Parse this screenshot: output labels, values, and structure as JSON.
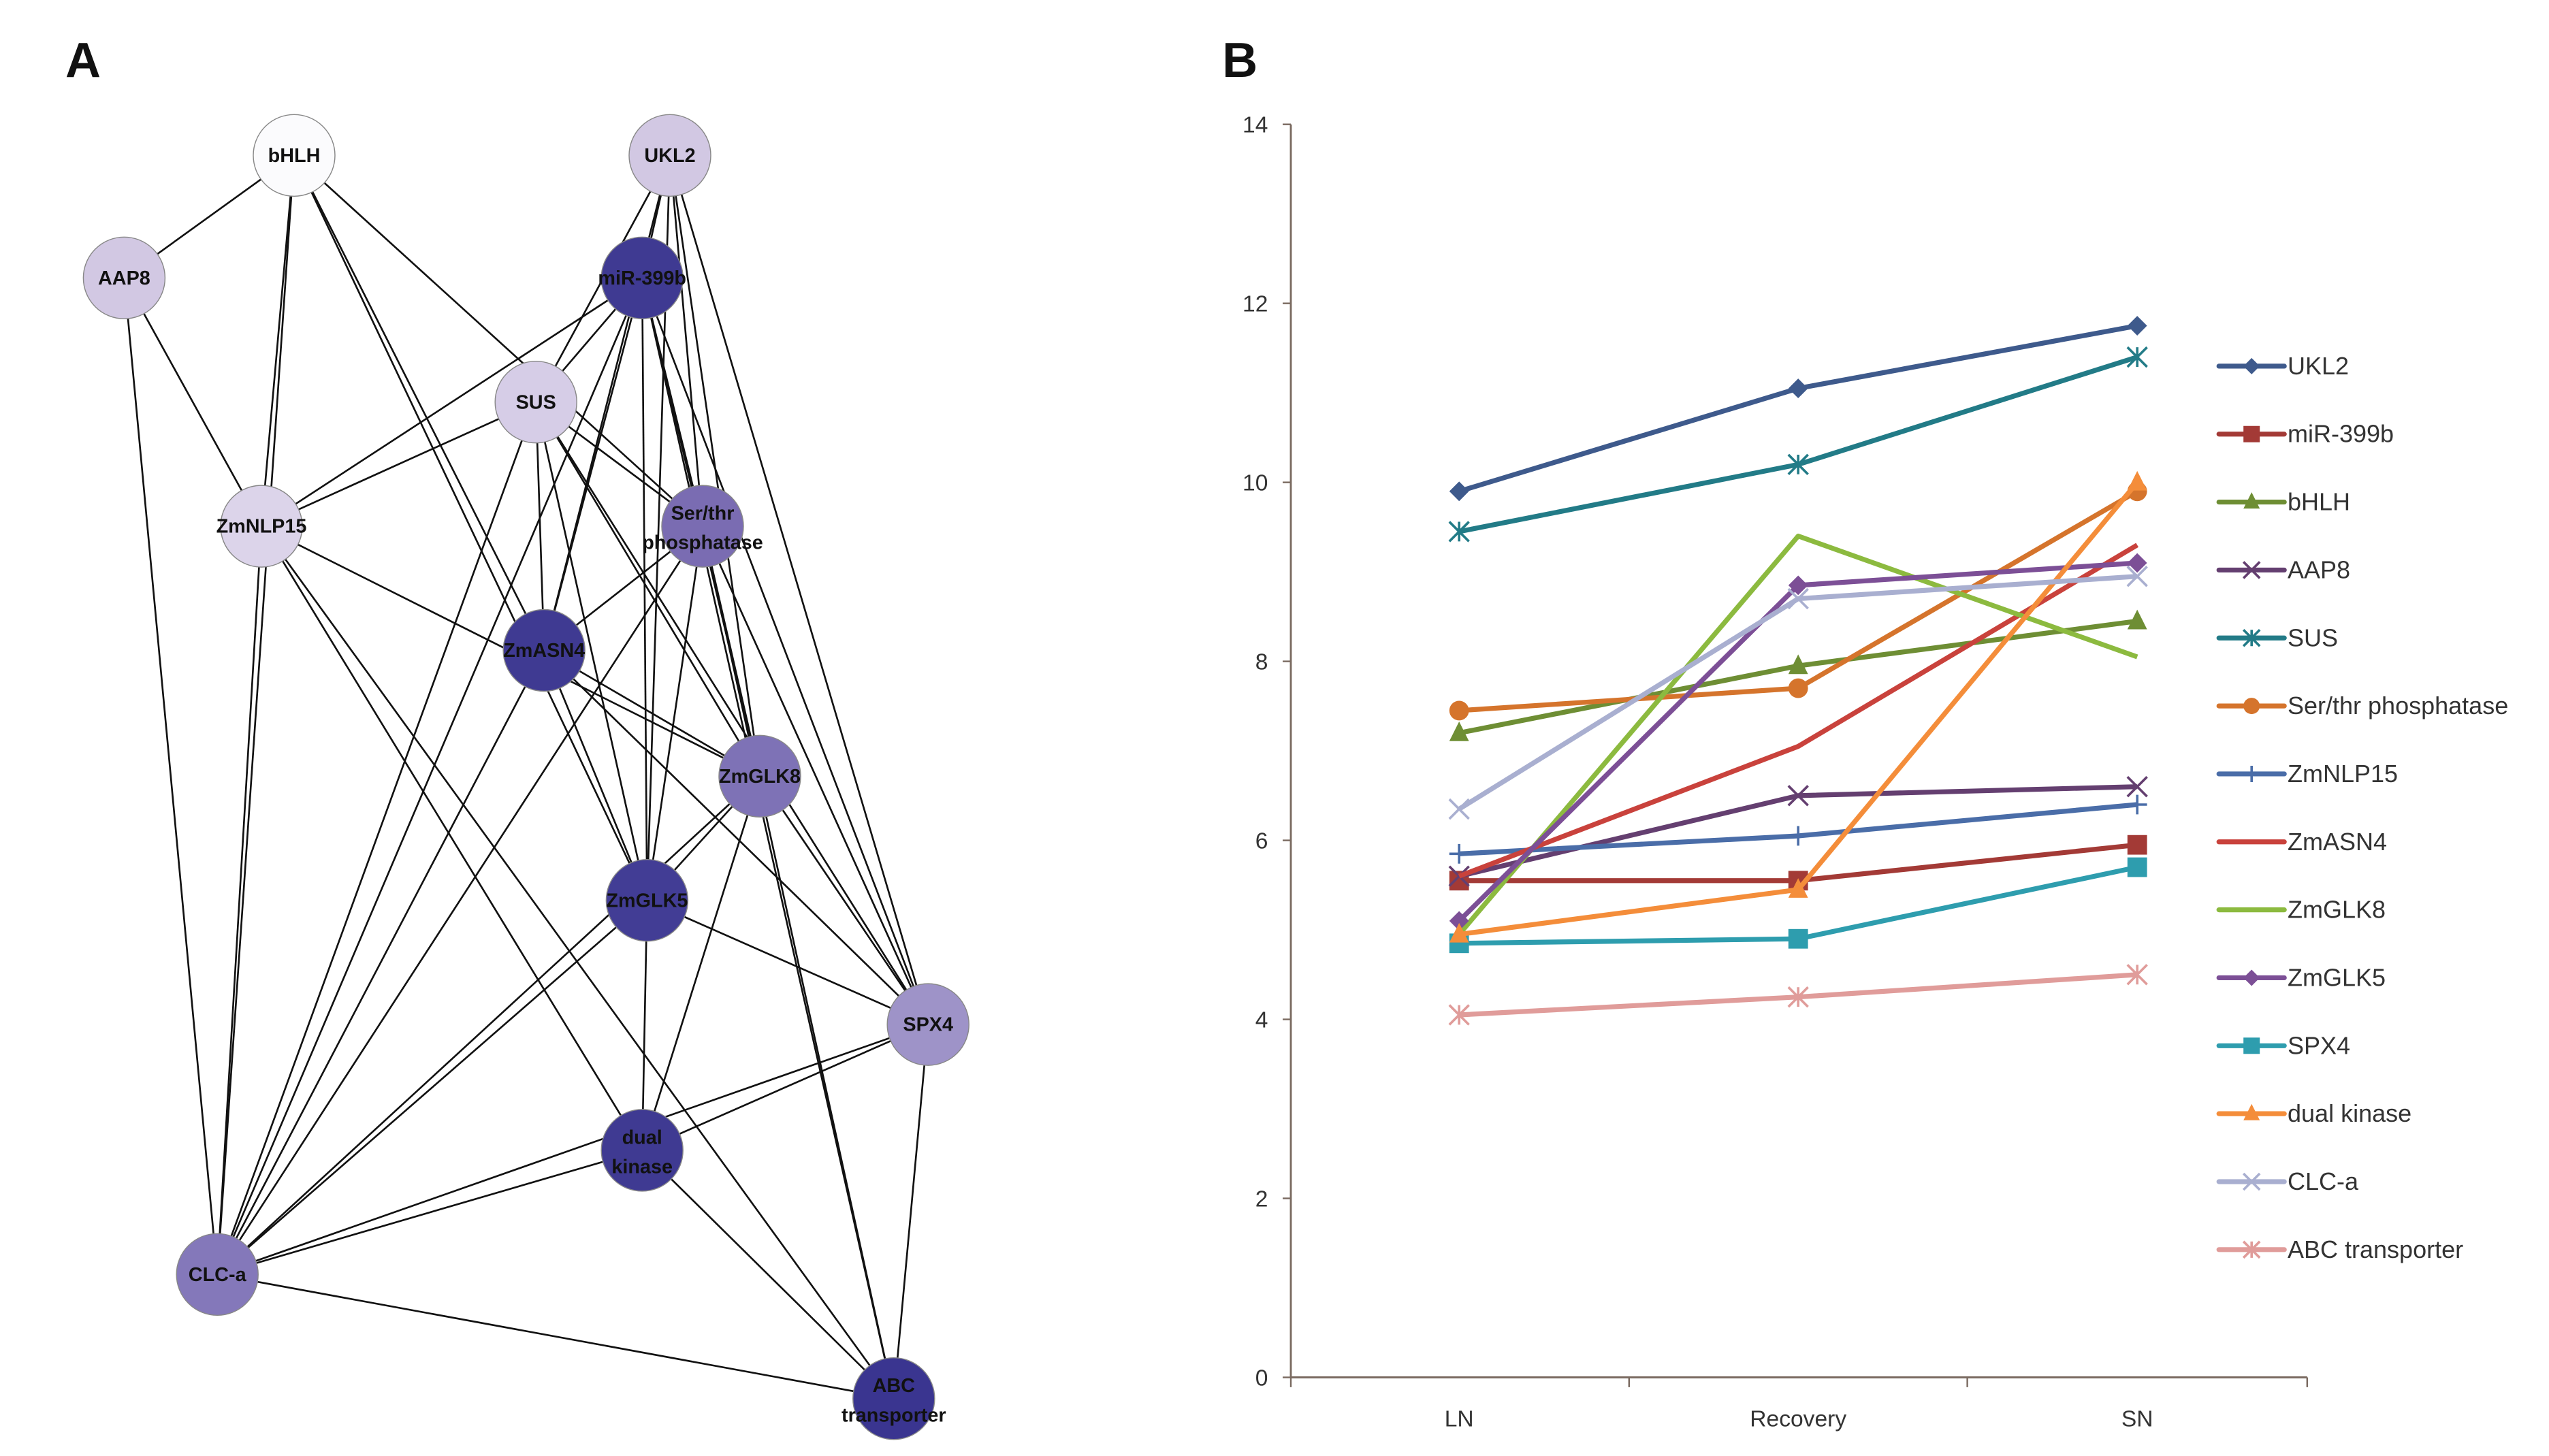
{
  "panel_a": {
    "label": "A",
    "nodes": [
      {
        "id": "bHLH",
        "label": "bHLH",
        "fill": "#fbfbfd"
      },
      {
        "id": "UKL2",
        "label": "UKL2",
        "fill": "#d2c8e3"
      },
      {
        "id": "AAP8",
        "label": "AAP8",
        "fill": "#d2c8e3"
      },
      {
        "id": "miR-399b",
        "label": "miR-399b",
        "fill": "#3f3a92"
      },
      {
        "id": "SUS",
        "label": "SUS",
        "fill": "#d6cde7"
      },
      {
        "id": "ZmNLP15",
        "label": "ZmNLP15",
        "fill": "#dcd4ea"
      },
      {
        "id": "Ser/thr",
        "label": "Ser/thr phosphatase",
        "fill": "#7a6cb2"
      },
      {
        "id": "ZmASN4",
        "label": "ZmASN4",
        "fill": "#3f3a92"
      },
      {
        "id": "ZmGLK8",
        "label": "ZmGLK8",
        "fill": "#7e72b6"
      },
      {
        "id": "ZmGLK5",
        "label": "ZmGLK5",
        "fill": "#423d95"
      },
      {
        "id": "SPX4",
        "label": "SPX4",
        "fill": "#9e93c8"
      },
      {
        "id": "dual kinase",
        "label": "dual kinase",
        "fill": "#3f3a92"
      },
      {
        "id": "CLC-a",
        "label": "CLC-a",
        "fill": "#8478ba"
      },
      {
        "id": "ABC transporter",
        "label": "ABC transporter",
        "fill": "#3a3590"
      }
    ],
    "edges": [
      [
        "bHLH",
        "AAP8"
      ],
      [
        "bHLH",
        "CLC-a"
      ],
      [
        "bHLH",
        "ZmNLP15"
      ],
      [
        "bHLH",
        "ZmGLK5"
      ],
      [
        "bHLH",
        "ZmASN4"
      ],
      [
        "bHLH",
        "Ser/thr"
      ],
      [
        "UKL2",
        "miR-399b"
      ],
      [
        "UKL2",
        "SUS"
      ],
      [
        "UKL2",
        "ZmASN4"
      ],
      [
        "UKL2",
        "ZmGLK5"
      ],
      [
        "UKL2",
        "Ser/thr"
      ],
      [
        "UKL2",
        "ZmGLK8"
      ],
      [
        "UKL2",
        "SPX4"
      ],
      [
        "miR-399b",
        "SUS"
      ],
      [
        "miR-399b",
        "ZmNLP15"
      ],
      [
        "miR-399b",
        "CLC-a"
      ],
      [
        "miR-399b",
        "ZmASN4"
      ],
      [
        "miR-399b",
        "ZmGLK5"
      ],
      [
        "miR-399b",
        "Ser/thr"
      ],
      [
        "miR-399b",
        "ZmGLK8"
      ],
      [
        "miR-399b",
        "SPX4"
      ],
      [
        "miR-399b",
        "ABC transporter"
      ],
      [
        "AAP8",
        "CLC-a"
      ],
      [
        "AAP8",
        "ZmNLP15"
      ],
      [
        "SUS",
        "ZmNLP15"
      ],
      [
        "SUS",
        "CLC-a"
      ],
      [
        "SUS",
        "ZmASN4"
      ],
      [
        "SUS",
        "ZmGLK5"
      ],
      [
        "SUS",
        "Ser/thr"
      ],
      [
        "SUS",
        "ZmGLK8"
      ],
      [
        "SUS",
        "SPX4"
      ],
      [
        "ZmNLP15",
        "CLC-a"
      ],
      [
        "ZmNLP15",
        "ZmGLK8"
      ],
      [
        "ZmNLP15",
        "dual kinase"
      ],
      [
        "ZmNLP15",
        "ABC transporter"
      ],
      [
        "Ser/thr",
        "ZmASN4"
      ],
      [
        "Ser/thr",
        "ZmGLK5"
      ],
      [
        "Ser/thr",
        "ZmGLK8"
      ],
      [
        "Ser/thr",
        "CLC-a"
      ],
      [
        "Ser/thr",
        "SPX4"
      ],
      [
        "Ser/thr",
        "ABC transporter"
      ],
      [
        "ZmASN4",
        "ZmGLK5"
      ],
      [
        "ZmASN4",
        "ZmGLK8"
      ],
      [
        "ZmASN4",
        "CLC-a"
      ],
      [
        "ZmASN4",
        "SPX4"
      ],
      [
        "ZmGLK8",
        "ZmGLK5"
      ],
      [
        "ZmGLK8",
        "SPX4"
      ],
      [
        "ZmGLK8",
        "CLC-a"
      ],
      [
        "ZmGLK8",
        "dual kinase"
      ],
      [
        "ZmGLK5",
        "dual kinase"
      ],
      [
        "ZmGLK5",
        "SPX4"
      ],
      [
        "ZmGLK5",
        "CLC-a"
      ],
      [
        "SPX4",
        "dual kinase"
      ],
      [
        "SPX4",
        "CLC-a"
      ],
      [
        "SPX4",
        "ABC transporter"
      ],
      [
        "dual kinase",
        "CLC-a"
      ],
      [
        "dual kinase",
        "ABC transporter"
      ],
      [
        "CLC-a",
        "ABC transporter"
      ]
    ]
  },
  "panel_b": {
    "label": "B"
  },
  "chart_data": {
    "type": "line",
    "title": "",
    "xlabel": "",
    "ylabel": "",
    "categories": [
      "LN",
      "Recovery",
      "SN"
    ],
    "ylim": [
      0,
      14
    ],
    "yticks": [
      "0",
      "2",
      "4",
      "6",
      "8",
      "10",
      "12",
      "14"
    ],
    "grid": false,
    "legend": "right",
    "series": [
      {
        "name": "UKL2",
        "color": "#3e5a8c",
        "marker": "diamond",
        "values": [
          9.9,
          11.05,
          11.75
        ]
      },
      {
        "name": "miR-399b",
        "color": "#a33a36",
        "marker": "square",
        "values": [
          5.55,
          5.55,
          5.95
        ]
      },
      {
        "name": "bHLH",
        "color": "#6e8e34",
        "marker": "triangle",
        "values": [
          7.2,
          7.95,
          8.45
        ]
      },
      {
        "name": "AAP8",
        "color": "#643f70",
        "marker": "x",
        "values": [
          5.6,
          6.5,
          6.6
        ]
      },
      {
        "name": "SUS",
        "color": "#227b87",
        "marker": "asterisk",
        "values": [
          9.45,
          10.2,
          11.4
        ]
      },
      {
        "name": "Ser/thr phosphatase",
        "color": "#d5742c",
        "marker": "circle",
        "values": [
          7.45,
          7.7,
          9.9
        ]
      },
      {
        "name": "ZmNLP15",
        "color": "#4a6da8",
        "marker": "plus",
        "values": [
          5.85,
          6.05,
          6.4
        ]
      },
      {
        "name": "ZmASN4",
        "color": "#c9423c",
        "marker": "none",
        "values": [
          5.6,
          7.05,
          9.3
        ]
      },
      {
        "name": "ZmGLK8",
        "color": "#8cba3f",
        "marker": "none",
        "values": [
          4.95,
          9.4,
          8.05
        ]
      },
      {
        "name": "ZmGLK5",
        "color": "#7c4f96",
        "marker": "diamond",
        "values": [
          5.1,
          8.85,
          9.1
        ]
      },
      {
        "name": "SPX4",
        "color": "#2e9dae",
        "marker": "square",
        "values": [
          4.85,
          4.9,
          5.7
        ]
      },
      {
        "name": "dual kinase",
        "color": "#f48d3a",
        "marker": "triangle",
        "values": [
          4.95,
          5.45,
          10.0
        ]
      },
      {
        "name": "CLC-a",
        "color": "#a9afd0",
        "marker": "x",
        "values": [
          6.35,
          8.7,
          8.95
        ]
      },
      {
        "name": "ABC transporter",
        "color": "#e09c9a",
        "marker": "asterisk",
        "values": [
          4.05,
          4.25,
          4.5
        ]
      }
    ]
  }
}
